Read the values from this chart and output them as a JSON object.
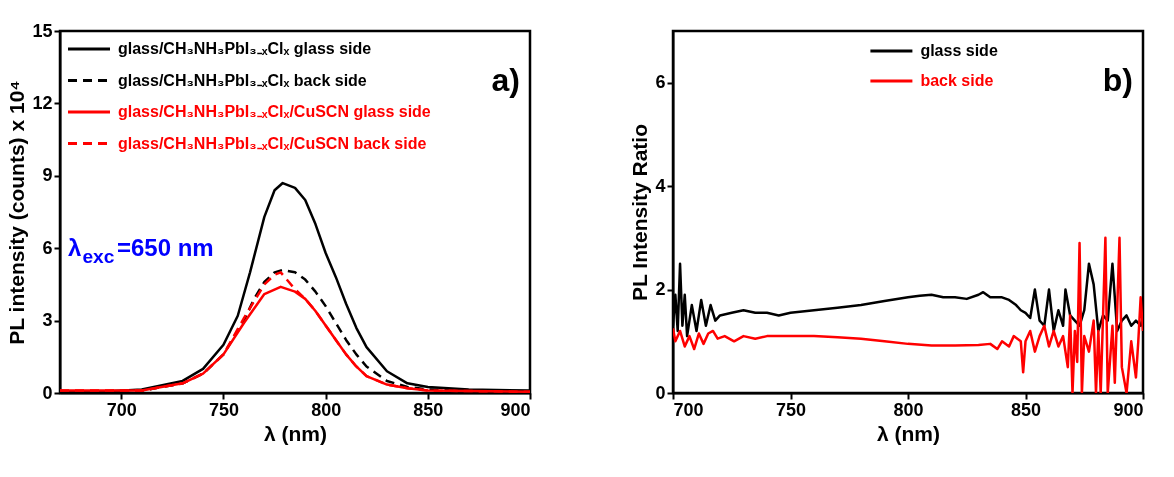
{
  "chart_data": [
    {
      "type": "line",
      "xlabel": "λ (nm)",
      "ylabel": "PL intensity (counts) x 10⁴",
      "xlim": [
        670,
        900
      ],
      "xticks": [
        700,
        750,
        800,
        850,
        900
      ],
      "ylim": [
        0,
        15
      ],
      "yticks": [
        0,
        3,
        6,
        9,
        12,
        15
      ],
      "legend": "top left",
      "annotations": [
        "a)",
        "λ$_{exc}$=650 nm"
      ],
      "series": [
        {
          "name": "glass/CH₃NH₃PbI₃₋ₓClₓ glass side",
          "color": "#000000",
          "line_style": "solid",
          "x": [
            670,
            690,
            710,
            730,
            740,
            750,
            757,
            763,
            770,
            775,
            779,
            785,
            790,
            795,
            800,
            805,
            810,
            815,
            820,
            830,
            840,
            850,
            870,
            900
          ],
          "values": [
            0.05,
            0.05,
            0.15,
            0.5,
            1.0,
            2.0,
            3.2,
            5.0,
            7.3,
            8.4,
            8.7,
            8.5,
            8.0,
            7.0,
            5.8,
            4.8,
            3.7,
            2.7,
            1.9,
            0.9,
            0.4,
            0.25,
            0.15,
            0.1
          ]
        },
        {
          "name": "glass/CH₃NH₃PbI₃₋ₓClₓ back side",
          "color": "#000000",
          "line_style": "dashed",
          "x": [
            670,
            710,
            730,
            740,
            750,
            760,
            765,
            770,
            775,
            779,
            785,
            790,
            795,
            800,
            805,
            810,
            815,
            820,
            830,
            840,
            850,
            900
          ],
          "values": [
            0.05,
            0.1,
            0.4,
            0.8,
            1.6,
            3.0,
            3.9,
            4.6,
            5.0,
            5.1,
            5.0,
            4.7,
            4.2,
            3.6,
            2.9,
            2.2,
            1.6,
            1.1,
            0.5,
            0.25,
            0.15,
            0.05
          ]
        },
        {
          "name": "glass/CH₃NH₃PbI₃₋ₓClₓ/CuSCN glass side",
          "color": "#ff0000",
          "line_style": "solid",
          "x": [
            670,
            710,
            730,
            740,
            750,
            760,
            765,
            770,
            778,
            785,
            790,
            795,
            800,
            805,
            810,
            815,
            820,
            830,
            840,
            850,
            900
          ],
          "values": [
            0.1,
            0.1,
            0.4,
            0.8,
            1.6,
            2.9,
            3.5,
            4.1,
            4.4,
            4.2,
            3.9,
            3.4,
            2.8,
            2.2,
            1.6,
            1.1,
            0.7,
            0.35,
            0.2,
            0.1,
            0.05
          ]
        },
        {
          "name": "glass/CH₃NH₃PbI₃₋ₓClₓ/CuSCN back side",
          "color": "#ff0000",
          "line_style": "dashed",
          "x": [
            670,
            710,
            730,
            740,
            750,
            760,
            765,
            770,
            775,
            778,
            782,
            785,
            790,
            795,
            800,
            805,
            810,
            815,
            820,
            830,
            840,
            850,
            900
          ],
          "values": [
            0.1,
            0.1,
            0.4,
            0.8,
            1.6,
            3.1,
            3.8,
            4.5,
            4.9,
            5.0,
            4.6,
            4.3,
            3.9,
            3.4,
            2.8,
            2.2,
            1.6,
            1.1,
            0.7,
            0.35,
            0.2,
            0.1,
            0.05
          ]
        }
      ]
    },
    {
      "type": "line",
      "xlabel": "λ (nm)",
      "ylabel": "PL Intensity Ratio",
      "xlim": [
        700,
        900
      ],
      "xticks": [
        700,
        750,
        800,
        850,
        900
      ],
      "ylim": [
        0,
        7
      ],
      "yticks": [
        0,
        2,
        4,
        6
      ],
      "legend": "top",
      "annotations": [
        "b)"
      ],
      "series": [
        {
          "name": "glass side",
          "color": "#000000",
          "line_style": "solid",
          "x": [
            700,
            701,
            702,
            703,
            704,
            705,
            706,
            708,
            710,
            712,
            714,
            716,
            718,
            720,
            725,
            730,
            735,
            740,
            745,
            750,
            760,
            770,
            780,
            790,
            800,
            805,
            810,
            815,
            820,
            825,
            830,
            832,
            835,
            840,
            843,
            846,
            848,
            850,
            852,
            854,
            856,
            858,
            860,
            862,
            864,
            866,
            867,
            869,
            871,
            873,
            875,
            877,
            879,
            881,
            883,
            885,
            887,
            889,
            891,
            893,
            895,
            897,
            899,
            900
          ],
          "values": [
            1.3,
            1.9,
            1.2,
            2.5,
            1.3,
            1.9,
            1.1,
            1.7,
            1.2,
            1.8,
            1.3,
            1.7,
            1.4,
            1.5,
            1.55,
            1.6,
            1.55,
            1.55,
            1.5,
            1.55,
            1.6,
            1.65,
            1.7,
            1.78,
            1.85,
            1.88,
            1.9,
            1.85,
            1.85,
            1.82,
            1.9,
            1.95,
            1.85,
            1.85,
            1.8,
            1.7,
            1.6,
            1.55,
            1.45,
            2.0,
            1.4,
            1.3,
            2.0,
            1.2,
            1.6,
            1.3,
            2.0,
            1.5,
            1.4,
            1.3,
            1.6,
            2.5,
            2.1,
            1.2,
            1.5,
            1.4,
            2.5,
            1.2,
            1.4,
            1.5,
            1.3,
            1.4,
            1.3,
            1.5
          ]
        },
        {
          "name": "back side",
          "color": "#ff0000",
          "line_style": "solid",
          "x": [
            700,
            701,
            703,
            705,
            707,
            709,
            711,
            713,
            715,
            717,
            719,
            722,
            726,
            730,
            735,
            740,
            750,
            760,
            770,
            780,
            790,
            800,
            810,
            820,
            830,
            835,
            838,
            840,
            843,
            845,
            848,
            849,
            850,
            852,
            854,
            856,
            858,
            860,
            862,
            864,
            866,
            868,
            869,
            870,
            871,
            872,
            873,
            874,
            875,
            877,
            879,
            880,
            881,
            882,
            884,
            885,
            887,
            888,
            890,
            891,
            893,
            895,
            897,
            898,
            899,
            900
          ],
          "values": [
            1.25,
            1.0,
            1.2,
            0.9,
            1.1,
            0.85,
            1.15,
            0.95,
            1.15,
            1.2,
            1.05,
            1.1,
            1.0,
            1.1,
            1.05,
            1.1,
            1.1,
            1.1,
            1.08,
            1.05,
            1.0,
            0.95,
            0.92,
            0.92,
            0.93,
            0.95,
            0.85,
            1.0,
            0.9,
            1.1,
            1.0,
            0.4,
            1.0,
            1.2,
            0.8,
            1.1,
            1.3,
            0.9,
            1.2,
            0.9,
            1.1,
            0.5,
            1.5,
            0.0,
            1.2,
            0.6,
            2.9,
            0.0,
            1.1,
            0.8,
            1.4,
            0.0,
            1.2,
            0.0,
            3.0,
            0.0,
            1.3,
            0.2,
            3.0,
            0.5,
            0.0,
            1.0,
            0.3,
            1.0,
            1.85,
            1.2
          ]
        }
      ]
    }
  ]
}
